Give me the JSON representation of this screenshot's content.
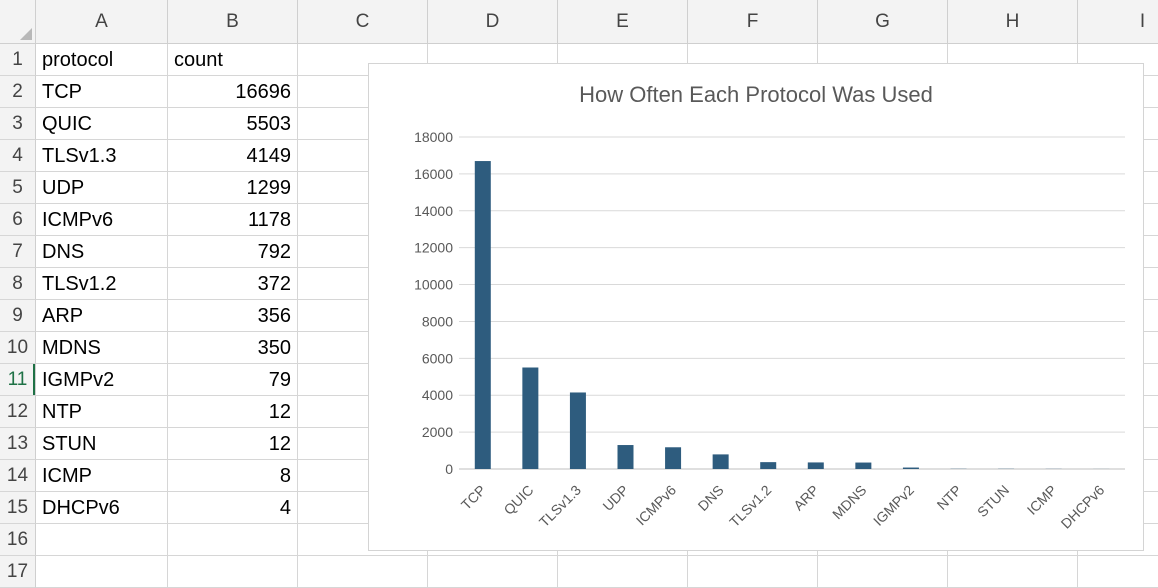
{
  "columns": [
    "A",
    "B",
    "C",
    "D",
    "E",
    "F",
    "G",
    "H",
    "I"
  ],
  "rows": [
    "1",
    "2",
    "3",
    "4",
    "5",
    "6",
    "7",
    "8",
    "9",
    "10",
    "11",
    "12",
    "13",
    "14",
    "15",
    "16",
    "17"
  ],
  "active_row": "11",
  "table": {
    "header": {
      "protocol": "protocol",
      "count": "count"
    },
    "rows": [
      {
        "protocol": "TCP",
        "count": "16696"
      },
      {
        "protocol": "QUIC",
        "count": "5503"
      },
      {
        "protocol": "TLSv1.3",
        "count": "4149"
      },
      {
        "protocol": "UDP",
        "count": "1299"
      },
      {
        "protocol": "ICMPv6",
        "count": "1178"
      },
      {
        "protocol": "DNS",
        "count": "792"
      },
      {
        "protocol": "TLSv1.2",
        "count": "372"
      },
      {
        "protocol": "ARP",
        "count": "356"
      },
      {
        "protocol": "MDNS",
        "count": "350"
      },
      {
        "protocol": "IGMPv2",
        "count": "79"
      },
      {
        "protocol": "NTP",
        "count": "12"
      },
      {
        "protocol": "STUN",
        "count": "12"
      },
      {
        "protocol": "ICMP",
        "count": "8"
      },
      {
        "protocol": "DHCPv6",
        "count": "4"
      }
    ]
  },
  "chart_data": {
    "type": "bar",
    "title": "How Often Each Protocol Was Used",
    "categories": [
      "TCP",
      "QUIC",
      "TLSv1.3",
      "UDP",
      "ICMPv6",
      "DNS",
      "TLSv1.2",
      "ARP",
      "MDNS",
      "IGMPv2",
      "NTP",
      "STUN",
      "ICMP",
      "DHCPv6"
    ],
    "values": [
      16696,
      5503,
      4149,
      1299,
      1178,
      792,
      372,
      356,
      350,
      79,
      12,
      12,
      8,
      4
    ],
    "ylim": [
      0,
      18000
    ],
    "yticks": [
      0,
      2000,
      4000,
      6000,
      8000,
      10000,
      12000,
      14000,
      16000,
      18000
    ],
    "grid": true,
    "legend": "none",
    "bar_color": "#2e5c7e",
    "gridline_color": "#d9d9d9"
  }
}
